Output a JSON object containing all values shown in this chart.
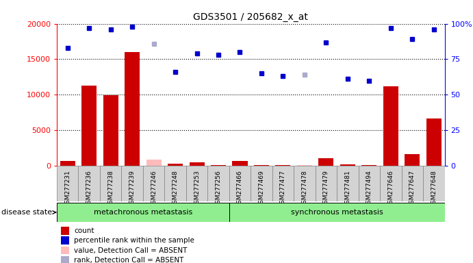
{
  "title": "GDS3501 / 205682_x_at",
  "samples": [
    "GSM277231",
    "GSM277236",
    "GSM277238",
    "GSM277239",
    "GSM277246",
    "GSM277248",
    "GSM277253",
    "GSM277256",
    "GSM277466",
    "GSM277469",
    "GSM277477",
    "GSM277478",
    "GSM277479",
    "GSM277481",
    "GSM277494",
    "GSM277646",
    "GSM277647",
    "GSM277648"
  ],
  "count_values": [
    700,
    11300,
    9900,
    16000,
    900,
    300,
    500,
    100,
    700,
    100,
    100,
    100,
    1100,
    200,
    100,
    11200,
    1600,
    6600
  ],
  "percentile_values": [
    83,
    97,
    96,
    98,
    86,
    66,
    79,
    78,
    80,
    65,
    63,
    64,
    87,
    61,
    60,
    97,
    89,
    96
  ],
  "absent_value_indices": [
    4,
    11
  ],
  "absent_rank_indices": [
    4,
    11
  ],
  "bar_color": "#cc0000",
  "bar_absent_color": "#ffbbbb",
  "dot_color": "#0000cc",
  "dot_absent_color": "#aaaacc",
  "meta_bg": "#90ee90",
  "sync_bg": "#90ee90",
  "tick_bg": "#d3d3d3",
  "ylim_left": [
    0,
    20000
  ],
  "ylim_right": [
    0,
    100
  ],
  "yticks_left": [
    0,
    5000,
    10000,
    15000,
    20000
  ],
  "yticks_right": [
    0,
    25,
    50,
    75,
    100
  ],
  "meta_count": 8,
  "legend_labels": [
    "count",
    "percentile rank within the sample",
    "value, Detection Call = ABSENT",
    "rank, Detection Call = ABSENT"
  ],
  "legend_colors": [
    "#cc0000",
    "#0000cc",
    "#ffbbbb",
    "#aaaacc"
  ],
  "disease_state_label": "disease state",
  "metachronous_label": "metachronous metastasis",
  "synchronous_label": "synchronous metastasis"
}
